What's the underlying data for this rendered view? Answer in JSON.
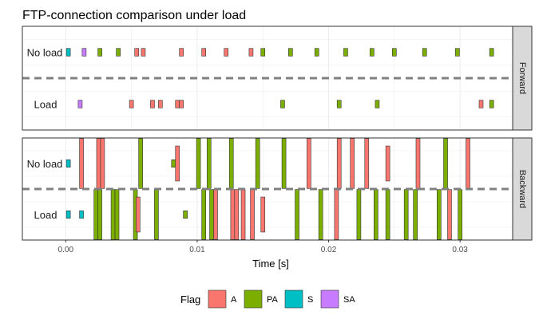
{
  "chart_data": {
    "type": "timeline",
    "title": "FTP-connection comparison under load",
    "xlabel": "Time [s]",
    "xlim": [
      -0.0033,
      0.034
    ],
    "xticks": [
      0.0,
      0.01,
      0.02,
      0.03
    ],
    "xtick_labels": [
      "0.00",
      "0.01",
      "0.02",
      "0.03"
    ],
    "grid": true,
    "legend": {
      "title": "Flag",
      "placement": "bottom",
      "entries": [
        {
          "key": "A",
          "label": "A",
          "color": "#F8766D"
        },
        {
          "key": "PA",
          "label": "PA",
          "color": "#7CAE00"
        },
        {
          "key": "S",
          "label": "S",
          "color": "#00BFC4"
        },
        {
          "key": "SA",
          "label": "SA",
          "color": "#C77CFF"
        }
      ]
    },
    "row_labels": [
      "No load",
      "Load"
    ],
    "panels": [
      {
        "strip": "Forward",
        "rows": [
          {
            "label": "No load",
            "events": [
              {
                "t": 0.0002,
                "flag": "S",
                "height": 0.15
              },
              {
                "t": 0.0014,
                "flag": "SA",
                "height": 0.15
              },
              {
                "t": 0.0026,
                "flag": "PA",
                "height": 0.15
              },
              {
                "t": 0.004,
                "flag": "PA",
                "height": 0.15
              },
              {
                "t": 0.0054,
                "flag": "A",
                "height": 0.15
              },
              {
                "t": 0.0059,
                "flag": "A",
                "height": 0.15
              },
              {
                "t": 0.0088,
                "flag": "A",
                "height": 0.15
              },
              {
                "t": 0.0105,
                "flag": "A",
                "height": 0.15
              },
              {
                "t": 0.0122,
                "flag": "A",
                "height": 0.15
              },
              {
                "t": 0.0141,
                "flag": "A",
                "height": 0.15
              },
              {
                "t": 0.015,
                "flag": "PA",
                "height": 0.15
              },
              {
                "t": 0.0171,
                "flag": "PA",
                "height": 0.15
              },
              {
                "t": 0.0191,
                "flag": "PA",
                "height": 0.15
              },
              {
                "t": 0.0213,
                "flag": "PA",
                "height": 0.15
              },
              {
                "t": 0.0233,
                "flag": "PA",
                "height": 0.15
              },
              {
                "t": 0.025,
                "flag": "PA",
                "height": 0.15
              },
              {
                "t": 0.0273,
                "flag": "PA",
                "height": 0.15
              },
              {
                "t": 0.0298,
                "flag": "PA",
                "height": 0.15
              },
              {
                "t": 0.0324,
                "flag": "PA",
                "height": 0.15
              }
            ]
          },
          {
            "label": "Load",
            "events": [
              {
                "t": 0.0011,
                "flag": "SA",
                "height": 0.15
              },
              {
                "t": 0.005,
                "flag": "A",
                "height": 0.15
              },
              {
                "t": 0.0066,
                "flag": "A",
                "height": 0.15
              },
              {
                "t": 0.0072,
                "flag": "A",
                "height": 0.15
              },
              {
                "t": 0.0085,
                "flag": "A",
                "height": 0.15
              },
              {
                "t": 0.0088,
                "flag": "A",
                "height": 0.15
              },
              {
                "t": 0.0165,
                "flag": "PA",
                "height": 0.15
              },
              {
                "t": 0.0208,
                "flag": "PA",
                "height": 0.15
              },
              {
                "t": 0.0237,
                "flag": "PA",
                "height": 0.15
              },
              {
                "t": 0.0316,
                "flag": "A",
                "height": 0.15
              },
              {
                "t": 0.0324,
                "flag": "PA",
                "height": 0.15
              }
            ]
          }
        ]
      },
      {
        "strip": "Backward",
        "rows": [
          {
            "label": "No load",
            "events": [
              {
                "t": 0.0002,
                "flag": "S",
                "height": 0.15
              },
              {
                "t": 0.0012,
                "flag": "A",
                "height": 1.0
              },
              {
                "t": 0.0025,
                "flag": "A",
                "height": 1.0
              },
              {
                "t": 0.0028,
                "flag": "A",
                "height": 1.0
              },
              {
                "t": 0.0057,
                "flag": "PA",
                "height": 1.0
              },
              {
                "t": 0.0082,
                "flag": "PA",
                "height": 0.15
              },
              {
                "t": 0.0085,
                "flag": "A",
                "height": 0.7
              },
              {
                "t": 0.0101,
                "flag": "PA",
                "height": 1.0
              },
              {
                "t": 0.0109,
                "flag": "PA",
                "height": 1.0
              },
              {
                "t": 0.0126,
                "flag": "PA",
                "height": 1.0
              },
              {
                "t": 0.0146,
                "flag": "PA",
                "height": 1.0
              },
              {
                "t": 0.0166,
                "flag": "PA",
                "height": 1.0
              },
              {
                "t": 0.0185,
                "flag": "A",
                "height": 1.0
              },
              {
                "t": 0.0208,
                "flag": "A",
                "height": 1.0
              },
              {
                "t": 0.0218,
                "flag": "A",
                "height": 1.0
              },
              {
                "t": 0.0229,
                "flag": "A",
                "height": 1.0
              },
              {
                "t": 0.0245,
                "flag": "A",
                "height": 0.7
              },
              {
                "t": 0.0268,
                "flag": "A",
                "height": 1.0
              },
              {
                "t": 0.0289,
                "flag": "PA",
                "height": 1.0
              },
              {
                "t": 0.0306,
                "flag": "A",
                "height": 1.0
              }
            ]
          },
          {
            "label": "Load",
            "events": [
              {
                "t": 0.0002,
                "flag": "S",
                "height": 0.15
              },
              {
                "t": 0.0012,
                "flag": "S",
                "height": 0.15
              },
              {
                "t": 0.0023,
                "flag": "PA",
                "height": 1.0
              },
              {
                "t": 0.0026,
                "flag": "PA",
                "height": 1.0
              },
              {
                "t": 0.0036,
                "flag": "PA",
                "height": 1.0
              },
              {
                "t": 0.0039,
                "flag": "PA",
                "height": 1.0
              },
              {
                "t": 0.0053,
                "flag": "PA",
                "height": 1.0
              },
              {
                "t": 0.0055,
                "flag": "A",
                "height": 0.7
              },
              {
                "t": 0.0069,
                "flag": "PA",
                "height": 1.0
              },
              {
                "t": 0.0091,
                "flag": "PA",
                "height": 0.15
              },
              {
                "t": 0.0105,
                "flag": "PA",
                "height": 1.0
              },
              {
                "t": 0.0111,
                "flag": "PA",
                "height": 1.0
              },
              {
                "t": 0.0114,
                "flag": "A",
                "height": 1.0
              },
              {
                "t": 0.0127,
                "flag": "A",
                "height": 1.0
              },
              {
                "t": 0.013,
                "flag": "A",
                "height": 1.0
              },
              {
                "t": 0.0135,
                "flag": "A",
                "height": 1.0
              },
              {
                "t": 0.0142,
                "flag": "A",
                "height": 1.0
              },
              {
                "t": 0.015,
                "flag": "A",
                "height": 0.7
              },
              {
                "t": 0.0176,
                "flag": "PA",
                "height": 1.0
              },
              {
                "t": 0.0194,
                "flag": "PA",
                "height": 1.0
              },
              {
                "t": 0.0206,
                "flag": "A",
                "height": 1.0
              },
              {
                "t": 0.0223,
                "flag": "PA",
                "height": 1.0
              },
              {
                "t": 0.0236,
                "flag": "PA",
                "height": 1.0
              },
              {
                "t": 0.0245,
                "flag": "PA",
                "height": 1.0
              },
              {
                "t": 0.0259,
                "flag": "PA",
                "height": 1.0
              },
              {
                "t": 0.0266,
                "flag": "PA",
                "height": 1.0
              },
              {
                "t": 0.0284,
                "flag": "PA",
                "height": 1.0
              },
              {
                "t": 0.0292,
                "flag": "A",
                "height": 1.0
              },
              {
                "t": 0.03,
                "flag": "PA",
                "height": 1.0
              }
            ]
          }
        ]
      }
    ]
  }
}
